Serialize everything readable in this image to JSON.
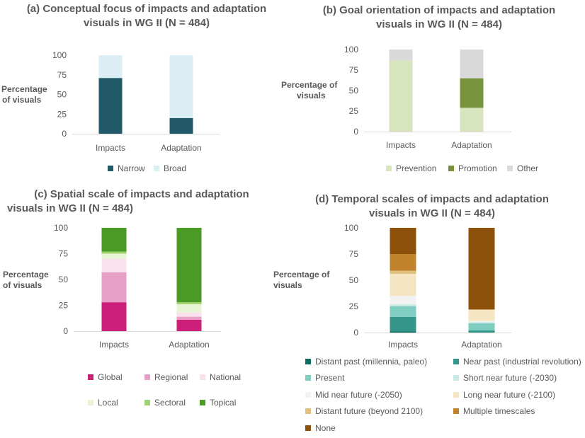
{
  "chart_data": [
    {
      "id": "a",
      "type": "stacked-bar",
      "title_line1": "(a) Conceptual focus of impacts and adaptation",
      "title_line2": "visuals in WG II (N = 484)",
      "ylabel_line1": "Percentage",
      "ylabel_line2": "of visuals",
      "categories": [
        "Impacts",
        "Adaptation"
      ],
      "yticks": [
        0,
        25,
        50,
        75,
        100
      ],
      "ylim": [
        0,
        100
      ],
      "series": [
        {
          "name": "Narrow",
          "color": "#215968",
          "values": [
            71,
            20
          ]
        },
        {
          "name": "Broad",
          "color": "#daeef3",
          "values": [
            29,
            80
          ]
        }
      ]
    },
    {
      "id": "b",
      "type": "stacked-bar",
      "title_line1": "(b) Goal orientation of impacts and adaptation",
      "title_line2": "visuals in WG II (N = 484)",
      "ylabel_line1": "Percentage of",
      "ylabel_line2": "visuals",
      "categories": [
        "Impacts",
        "Adaptation"
      ],
      "yticks": [
        0,
        25,
        50,
        75,
        100
      ],
      "ylim": [
        0,
        100
      ],
      "series": [
        {
          "name": "Prevention",
          "color": "#d7e4bd",
          "values": [
            87,
            29
          ]
        },
        {
          "name": "Promotion",
          "color": "#77933c",
          "values": [
            0,
            36
          ]
        },
        {
          "name": "Other",
          "color": "#d9d9d9",
          "values": [
            13,
            35
          ]
        }
      ]
    },
    {
      "id": "c",
      "type": "stacked-bar",
      "title_line1": "(c) Spatial scale of impacts and adaptation",
      "title_line2": "visuals in WG II (N = 484)",
      "ylabel_line1": "Percentage",
      "ylabel_line2": "of visuals",
      "categories": [
        "Impacts",
        "Adaptation"
      ],
      "yticks": [
        0,
        25,
        50,
        75,
        100
      ],
      "ylim": [
        0,
        100
      ],
      "series": [
        {
          "name": "Global",
          "color": "#cc1f7a",
          "values": [
            28,
            11
          ]
        },
        {
          "name": "Regional",
          "color": "#e8a1c6",
          "values": [
            29,
            3
          ]
        },
        {
          "name": "National",
          "color": "#fbe0ee",
          "values": [
            13,
            4
          ]
        },
        {
          "name": "Local",
          "color": "#e8f4d6",
          "values": [
            5,
            8
          ]
        },
        {
          "name": "Sectoral",
          "color": "#a2d26f",
          "values": [
            2,
            2
          ]
        },
        {
          "name": "Topical",
          "color": "#4a9a25",
          "values": [
            23,
            72
          ]
        }
      ]
    },
    {
      "id": "d",
      "type": "stacked-bar",
      "title_line1": "(d) Temporal scales of impacts and adaptation",
      "title_line2": "visuals in WG II (N = 484)",
      "ylabel_line1": "Percentage of",
      "ylabel_line2": "visuals",
      "categories": [
        "Impacts",
        "Adaptation"
      ],
      "yticks": [
        0,
        25,
        50,
        75,
        100
      ],
      "ylim": [
        0,
        100
      ],
      "series": [
        {
          "name": "Distant past (millennia, paleo)",
          "color": "#0f6b5f",
          "values": [
            1,
            0
          ]
        },
        {
          "name": "Near past (industrial revolution)",
          "color": "#35958a",
          "values": [
            14,
            2
          ]
        },
        {
          "name": "Present",
          "color": "#80cdc1",
          "values": [
            10,
            7
          ]
        },
        {
          "name": "Short near future (-2030)",
          "color": "#c7eae5",
          "values": [
            2,
            1
          ]
        },
        {
          "name": "Mid near future (-2050)",
          "color": "#f2f2f2",
          "values": [
            8,
            1
          ]
        },
        {
          "name": "Long near future (-2100)",
          "color": "#f6e5c3",
          "values": [
            21,
            11
          ]
        },
        {
          "name": "Distant future (beyond 2100)",
          "color": "#dfc27d",
          "values": [
            3,
            0
          ]
        },
        {
          "name": "Multiple timescales",
          "color": "#c0822b",
          "values": [
            16,
            0
          ]
        },
        {
          "name": "None",
          "color": "#8c510a",
          "values": [
            25,
            78
          ]
        }
      ]
    }
  ]
}
